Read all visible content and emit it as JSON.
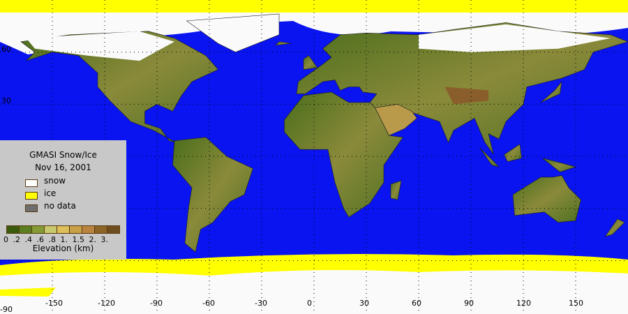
{
  "legend": {
    "title": "GMASI Snow/Ice",
    "date": "Nov 16, 2001",
    "items": [
      {
        "label": "snow",
        "color": "#ffffff"
      },
      {
        "label": "ice",
        "color": "#ffff00"
      },
      {
        "label": "no data",
        "color": "#6e6e6e"
      }
    ],
    "colorbar_colors": [
      "#3a5a0c",
      "#5a7e20",
      "#849a34",
      "#c8c86e",
      "#dcbe5a",
      "#c8a048",
      "#b88440",
      "#8c6428",
      "#6e4e1e"
    ],
    "colorbar_ticks": "0 .2 .4 .6 .8 1. 1.5 2. 3.",
    "colorbar_label": "Elevation (km)"
  },
  "axes": {
    "lon_labels": [
      "-150",
      "-120",
      "-90",
      "-60",
      "-30",
      "0",
      "30",
      "60",
      "90",
      "120",
      "150"
    ],
    "lat_labels": [
      "60",
      "30",
      "-90"
    ]
  },
  "colors": {
    "ocean": "#0a14f0",
    "snow": "#fafafa",
    "ice": "#ffff00",
    "land": "#4e6e22"
  }
}
